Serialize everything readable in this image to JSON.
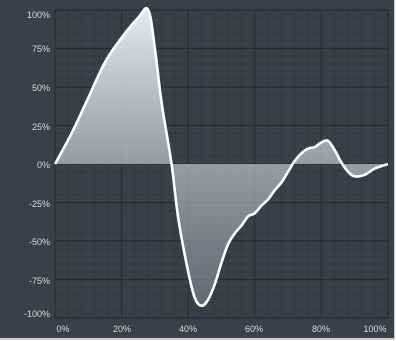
{
  "chart_data": {
    "type": "area",
    "title": "",
    "xlabel": "",
    "ylabel": "",
    "x_ticks": [
      "0%",
      "20%",
      "40%",
      "60%",
      "80%",
      "100%"
    ],
    "y_ticks": [
      "100%",
      "75%",
      "50%",
      "25%",
      "0%",
      "-25%",
      "-50%",
      "-75%",
      "-100%"
    ],
    "xlim": [
      0,
      100
    ],
    "ylim": [
      -100,
      100
    ],
    "grid": true,
    "series": [
      {
        "points": [
          [
            0,
            0
          ],
          [
            5,
            20
          ],
          [
            10,
            43
          ],
          [
            15,
            66
          ],
          [
            20,
            82
          ],
          [
            25,
            95
          ],
          [
            28,
            100
          ],
          [
            30,
            75
          ],
          [
            32,
            40
          ],
          [
            35,
            0
          ],
          [
            37,
            -35
          ],
          [
            40,
            -70
          ],
          [
            42,
            -87
          ],
          [
            44,
            -92
          ],
          [
            46,
            -88
          ],
          [
            48,
            -78
          ],
          [
            50,
            -64
          ],
          [
            52,
            -52
          ],
          [
            54,
            -45
          ],
          [
            56,
            -40
          ],
          [
            58,
            -34
          ],
          [
            60,
            -32
          ],
          [
            62,
            -27
          ],
          [
            64,
            -23
          ],
          [
            66,
            -17
          ],
          [
            68,
            -12
          ],
          [
            70,
            -5
          ],
          [
            72,
            2
          ],
          [
            74,
            7
          ],
          [
            76,
            10
          ],
          [
            78,
            11
          ],
          [
            80,
            14
          ],
          [
            82,
            15
          ],
          [
            84,
            9
          ],
          [
            86,
            1
          ],
          [
            88,
            -5
          ],
          [
            90,
            -8
          ],
          [
            93,
            -7
          ],
          [
            96,
            -3
          ],
          [
            100,
            0
          ]
        ]
      }
    ],
    "colors": {
      "background": "#3b4046",
      "grid_major": "#2a2e33",
      "grid_minor": "#33383d",
      "line": "#ffffff",
      "fill_top": "#f2f4f6",
      "fill_bottom": "#9aa0a7"
    }
  }
}
